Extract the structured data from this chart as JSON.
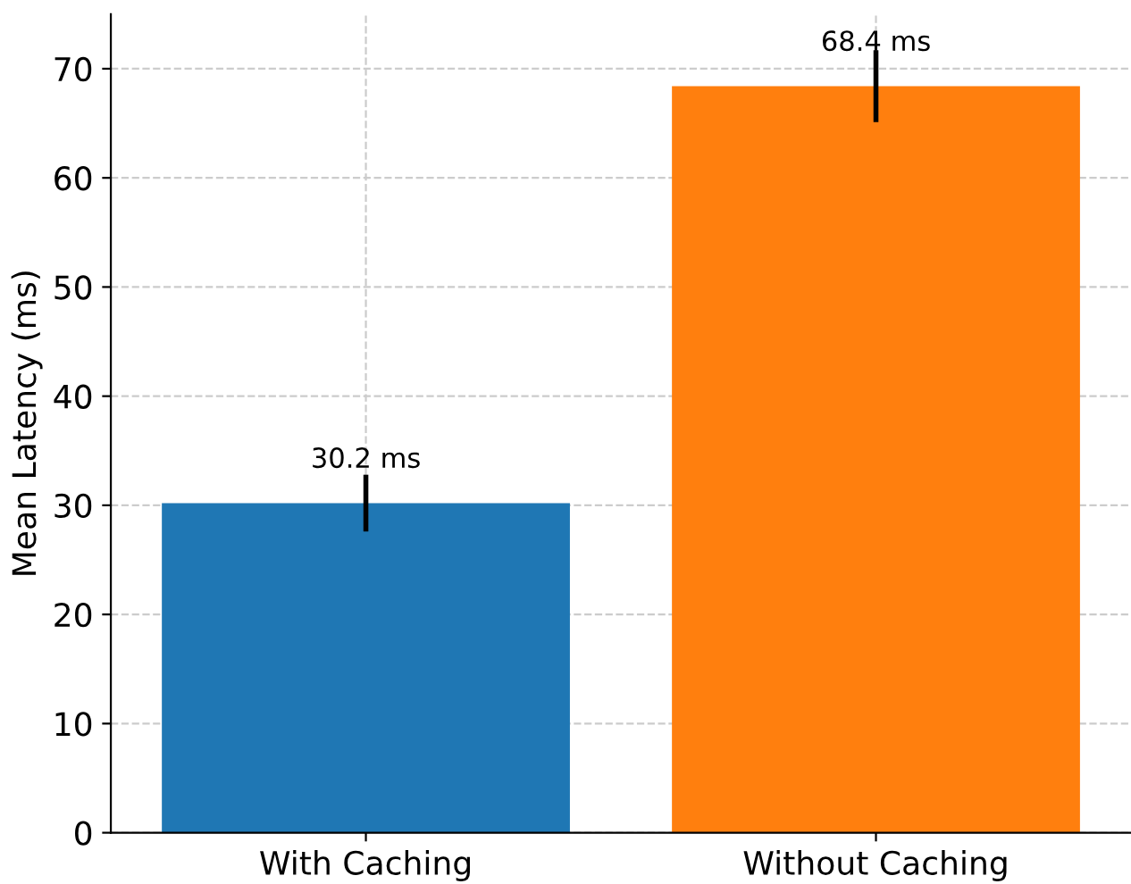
{
  "chart_data": {
    "type": "bar",
    "ylabel": "Mean Latency (ms)",
    "categories": [
      "With Caching",
      "Without Caching"
    ],
    "values": [
      30.2,
      68.4
    ],
    "colors": [
      "#1f77b4",
      "#ff7f0e"
    ],
    "errors": [
      2.6,
      3.3
    ],
    "value_labels": [
      "30.2 ms",
      "68.4 ms"
    ],
    "ylim": [
      0,
      75
    ],
    "yticks": [
      0,
      10,
      20,
      30,
      40,
      50,
      60,
      70
    ],
    "grid": true
  }
}
